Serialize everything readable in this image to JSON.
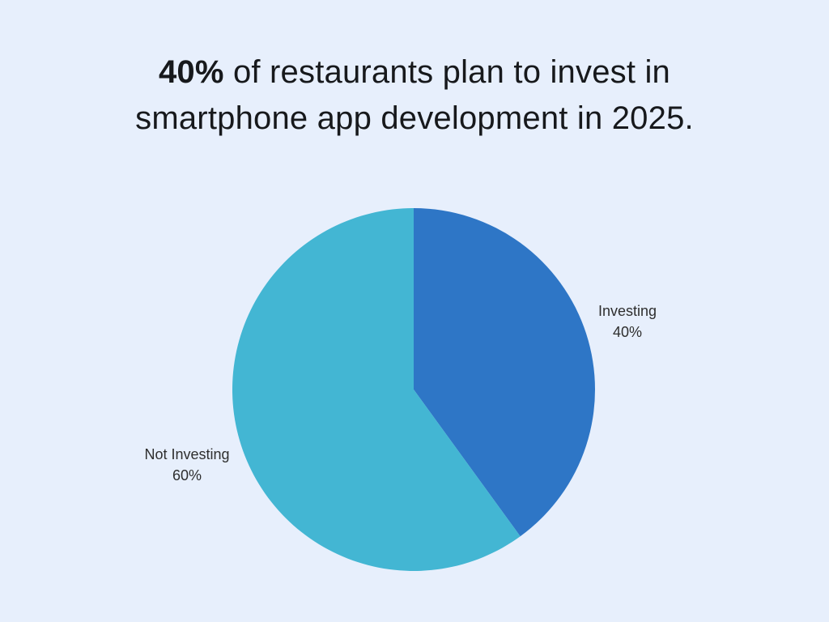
{
  "page": {
    "background": "#e7effc"
  },
  "title": {
    "line1_bold": "40%",
    "line1_rest": " of restaurants plan to invest in",
    "line2": "smartphone app development in 2025."
  },
  "chart_data": {
    "type": "pie",
    "title": "40% of restaurants plan to invest in smartphone app development in 2025.",
    "categories": [
      "Investing",
      "Not Investing"
    ],
    "values": [
      40,
      60
    ],
    "colors": [
      "#2e76c6",
      "#43b6d3"
    ],
    "start_angle_deg": 0,
    "direction": "clockwise",
    "legend_position": "outside-labels",
    "labels": [
      {
        "name": "Investing",
        "value_text": "40%"
      },
      {
        "name": "Not Investing",
        "value_text": "60%"
      }
    ]
  }
}
